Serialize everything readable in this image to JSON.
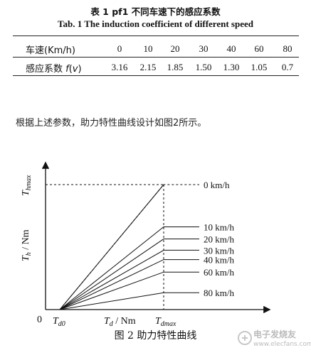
{
  "table": {
    "title_cn": "表 1   pf1 不同车速下的感应系数",
    "title_en": "Tab. 1   The induction coefficient of different speed",
    "row1_label": "车速(Km/h)",
    "row2_label": "感应系数 f(v)",
    "speeds": [
      "0",
      "10",
      "20",
      "30",
      "40",
      "60",
      "80"
    ],
    "coefficients": [
      "3.16",
      "2.15",
      "1.85",
      "1.50",
      "1.30",
      "1.05",
      "0.7"
    ]
  },
  "paragraph": "根据上述参数，助力特性曲线设计如图2所示。",
  "chart_data": {
    "type": "line",
    "xlabel": "T_d / Nm",
    "ylabel": "T_h / Nm",
    "origin_label": "0",
    "x_ticks": [
      "T_d0",
      "T_dmax"
    ],
    "y_ticks": [
      "T_hmax"
    ],
    "series": [
      {
        "name": "0 km/h",
        "level": 1.0
      },
      {
        "name": "10 km/h",
        "level": 0.662
      },
      {
        "name": "20 km/h",
        "level": 0.565
      },
      {
        "name": "30 km/h",
        "level": 0.475
      },
      {
        "name": "40 km/h",
        "level": 0.4
      },
      {
        "name": "60 km/h",
        "level": 0.3
      },
      {
        "name": "80 km/h",
        "level": 0.135
      }
    ]
  },
  "caption": "图 2    助力特性曲线",
  "watermark": {
    "text": "电子发烧友",
    "url": "www.elecfans.com"
  }
}
